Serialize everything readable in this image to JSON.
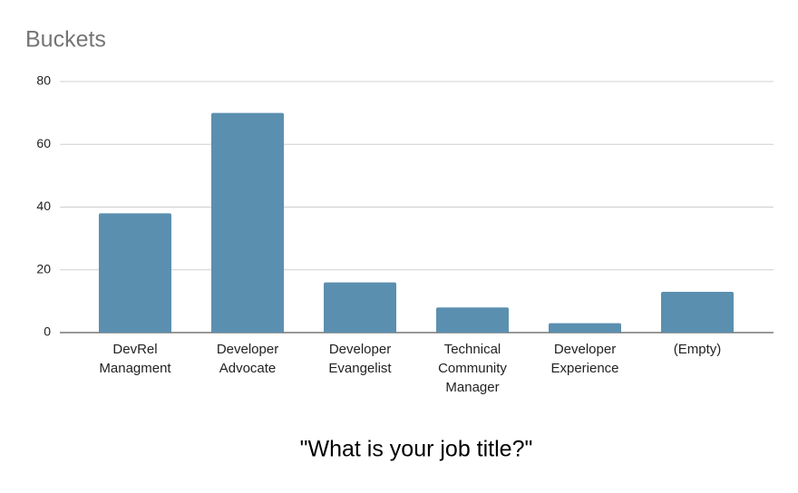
{
  "chart_data": {
    "type": "bar",
    "title": "Buckets",
    "x_label": "\"What is your job title?\"",
    "categories": [
      "DevRel Managment",
      "Developer Advocate",
      "Developer Evangelist",
      "Technical Community Manager",
      "Developer Experience",
      "(Empty)"
    ],
    "values": [
      38,
      70,
      16,
      8,
      3,
      13
    ],
    "color": "#5b8fb0",
    "ylim": [
      0,
      80
    ],
    "yticks": [
      0,
      20,
      40,
      60,
      80
    ],
    "grid": true
  }
}
